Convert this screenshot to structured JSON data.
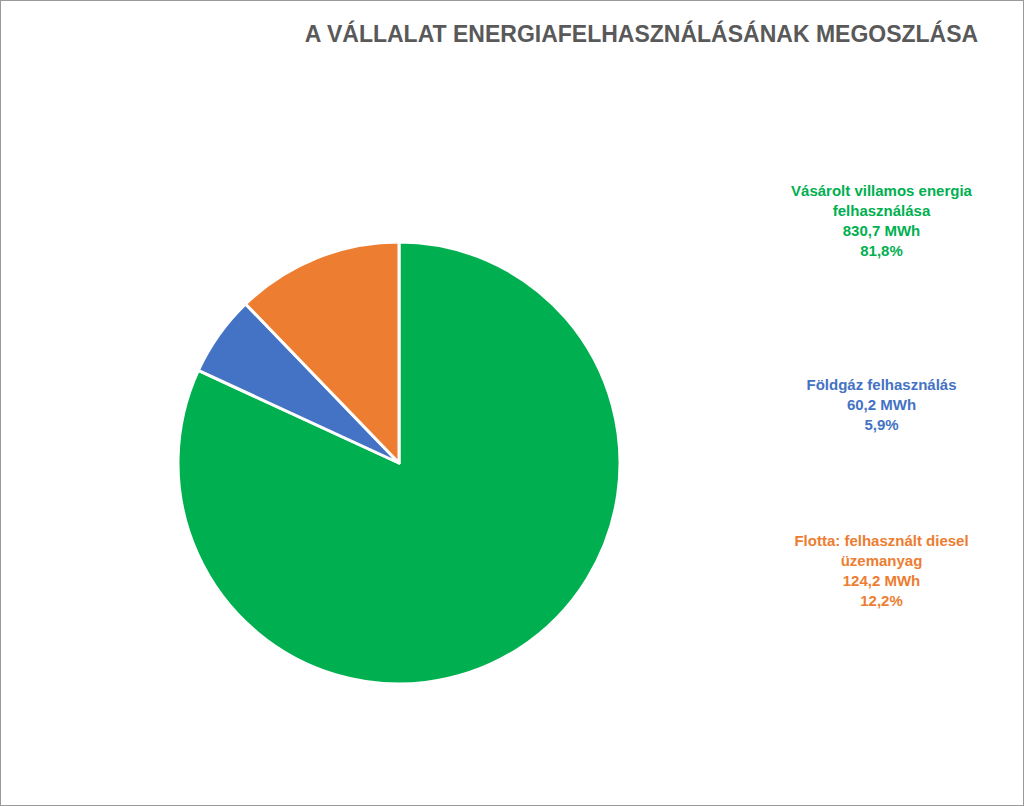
{
  "chart_data": {
    "type": "pie",
    "title": "A VÁLLALAT ENERGIAFELHASZNÁLÁSÁNAK MEGOSZLÁSA",
    "categories": [
      "Vásárolt villamos energia felhasználása",
      "Földgáz felhasználás",
      "Flotta: felhasznált diesel üzemanyag"
    ],
    "values": [
      81.8,
      5.9,
      12.2
    ],
    "value_labels": [
      "81,8%",
      "5,9%",
      "12,2%"
    ],
    "energy_labels": [
      "830,7 MWh",
      "60,2 MWh",
      "124,2 MWh"
    ],
    "colors": [
      "#00b050",
      "#4472c4",
      "#ed7d31"
    ],
    "data_labels": true
  }
}
